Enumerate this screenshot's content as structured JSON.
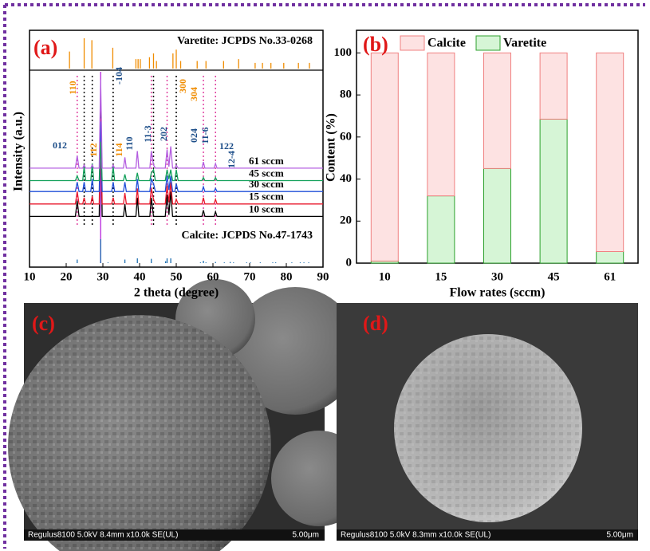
{
  "chart_data": [
    {
      "type": "line",
      "panel": "(a)",
      "xlabel": "2 theta (degree)",
      "ylabel": "Intensity (a.u.)",
      "xlim": [
        10,
        90
      ],
      "xticks": [
        10,
        20,
        30,
        40,
        50,
        60,
        70,
        80,
        90
      ],
      "ylim": [
        0,
        100
      ],
      "x": [
        10,
        22.5,
        23,
        23.5,
        24.5,
        24.9,
        25.3,
        26.7,
        27.1,
        27.5,
        29,
        29.4,
        29.8,
        32.4,
        32.8,
        33.2,
        35.6,
        36,
        36.4,
        39,
        39.4,
        39.8,
        42.8,
        43.2,
        43.8,
        44.3,
        47,
        47.5,
        48,
        48.5,
        49,
        49.6,
        50,
        50.5,
        57,
        57.4,
        57.8,
        60.3,
        60.7,
        61.1,
        90
      ],
      "series": [
        {
          "name": "10 sccm",
          "color": "#000000",
          "values": [
            7,
            7,
            17,
            7,
            7,
            7,
            7,
            7,
            7,
            7,
            7,
            79,
            7,
            7,
            7,
            7,
            7,
            15,
            7,
            7,
            19,
            7,
            7,
            19,
            7,
            7,
            7,
            21,
            8,
            23,
            7,
            7,
            7,
            7,
            7,
            11,
            7,
            7,
            10,
            7,
            7
          ]
        },
        {
          "name": "15 sccm",
          "color": "#e8192c",
          "values": [
            15,
            15,
            23,
            15,
            15,
            19,
            15,
            15,
            20,
            15,
            15,
            70,
            15,
            15,
            19,
            15,
            15,
            22,
            15,
            15,
            25,
            15,
            15,
            25,
            18,
            15,
            15,
            27,
            16,
            29,
            15,
            15,
            18,
            15,
            15,
            19,
            15,
            15,
            18,
            15,
            15
          ]
        },
        {
          "name": "30 sccm",
          "color": "#1f4fd8",
          "values": [
            23,
            23,
            29,
            23,
            23,
            29,
            23,
            23,
            31,
            23,
            23,
            68,
            23,
            23,
            29,
            23,
            23,
            29,
            23,
            23,
            31,
            23,
            23,
            31,
            28,
            23,
            23,
            33,
            24,
            33,
            23,
            23,
            28,
            23,
            23,
            26,
            23,
            23,
            25,
            23,
            23
          ]
        },
        {
          "name": "45 sccm",
          "color": "#12a05a",
          "values": [
            30,
            30,
            33,
            30,
            30,
            39,
            30,
            30,
            41,
            30,
            30,
            55,
            30,
            30,
            39,
            30,
            30,
            34,
            30,
            30,
            35,
            30,
            30,
            35,
            37,
            30,
            30,
            37,
            31,
            37,
            30,
            30,
            37,
            30,
            30,
            32,
            30,
            30,
            32,
            30,
            30
          ]
        },
        {
          "name": "61 sccm",
          "color": "#b45ee0",
          "values": [
            38,
            38,
            46,
            38,
            38,
            40,
            38,
            38,
            40,
            38,
            38,
            95,
            38,
            38,
            40,
            38,
            38,
            45,
            38,
            38,
            49,
            38,
            38,
            49,
            40,
            38,
            38,
            50,
            39,
            52,
            38,
            38,
            40,
            38,
            38,
            42,
            38,
            38,
            41,
            38,
            38
          ]
        }
      ],
      "references": [
        {
          "name": "Varetite: JCPDS No.33-0268",
          "color": "#f08c00",
          "positions": [
            20.9,
            24.9,
            27,
            32.7,
            39,
            39.6,
            40.2,
            42.7,
            43.8,
            44.6,
            49.1,
            50,
            51.2,
            55.7,
            58.1,
            62.9,
            67,
            71.5,
            73.5,
            75.8,
            79.3,
            83.3,
            86.3
          ],
          "values": [
            45,
            80,
            75,
            55,
            25,
            25,
            25,
            30,
            40,
            20,
            40,
            50,
            20,
            20,
            20,
            20,
            25,
            15,
            15,
            15,
            15,
            15,
            15
          ]
        },
        {
          "name": "Calcite: JCPDS No.47-1743",
          "color": "#1f6fb0",
          "positions": [
            23,
            29.4,
            31.4,
            36,
            39.4,
            43.2,
            47.1,
            47.5,
            48.5,
            56.6,
            57.4,
            58.1,
            60.7,
            63.1,
            64.7,
            65.6,
            69.2,
            70.2,
            72.9,
            76.3,
            77.1,
            81.5,
            83.8,
            84.8,
            86.1
          ],
          "values": [
            15,
            100,
            3,
            15,
            20,
            18,
            8,
            20,
            20,
            3,
            10,
            3,
            5,
            3,
            5,
            3,
            3,
            3,
            3,
            3,
            3,
            3,
            3,
            3,
            3
          ]
        }
      ],
      "annotations": [
        "110",
        "-104",
        "012",
        "112",
        "114",
        "110",
        "11-3",
        "202",
        "300",
        "304",
        "024",
        "11-6",
        "122",
        "12-4"
      ]
    },
    {
      "type": "bar",
      "panel": "(b)",
      "xlabel": "Flow rates (sccm)",
      "ylabel": "Content (%)",
      "categories": [
        "10",
        "15",
        "30",
        "45",
        "61"
      ],
      "ylim": [
        0,
        110
      ],
      "yticks": [
        0,
        20,
        40,
        60,
        80,
        100
      ],
      "series": [
        {
          "name": "Varetite",
          "color": "#d6f5d6",
          "edgecolor": "#2ca02c",
          "values": [
            1,
            32,
            45,
            68.5,
            5.5
          ]
        },
        {
          "name": "Calcite",
          "color": "#fde2e2",
          "edgecolor": "#f08080",
          "values": [
            99,
            68,
            55,
            31.5,
            94.5
          ]
        }
      ]
    }
  ],
  "images": [
    {
      "label": "(c)",
      "caption": "Regulus8100 5.0kV 8.4mm x10.0k SE(UL)",
      "scale": "5.00μm"
    },
    {
      "label": "(d)",
      "caption": "Regulus8100 5.0kV 8.3mm x10.0k SE(UL)",
      "scale": "5.00μm"
    }
  ]
}
